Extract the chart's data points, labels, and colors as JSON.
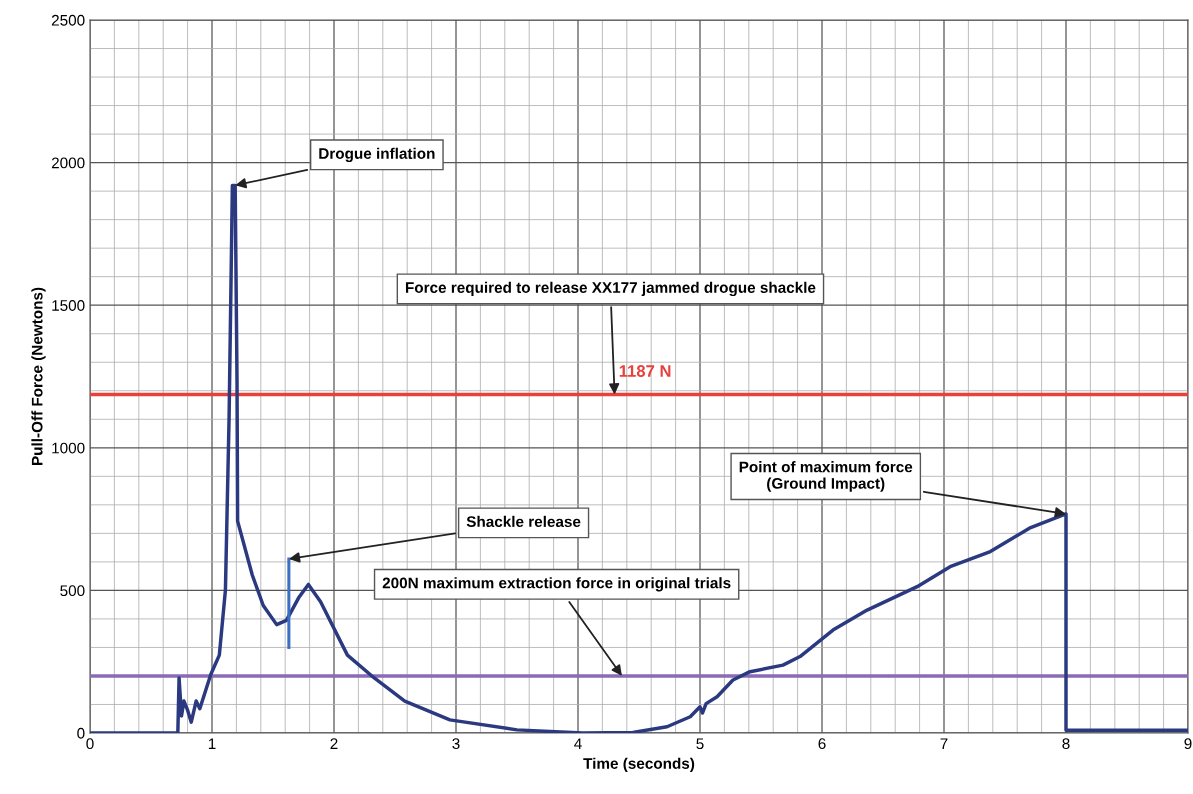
{
  "chart_data": {
    "type": "line",
    "xlabel": "Time (seconds)",
    "ylabel": "Pull-Off Force (Newtons)",
    "xlim": [
      0,
      9
    ],
    "ylim": [
      0,
      2500
    ],
    "xticks": [
      0,
      {
        "value": 0.2,
        "label": null
      },
      {
        "value": 0.4,
        "label": null
      },
      {
        "value": 0.6,
        "label": null
      },
      {
        "value": 0.8,
        "label": null
      },
      1,
      {
        "value": 1.2,
        "label": null
      },
      {
        "value": 1.4,
        "label": null
      },
      {
        "value": 1.6,
        "label": null
      },
      {
        "value": 1.8,
        "label": null
      },
      2,
      {
        "value": 2.2,
        "label": null
      },
      {
        "value": 2.4,
        "label": null
      },
      {
        "value": 2.6,
        "label": null
      },
      {
        "value": 2.8,
        "label": null
      },
      3,
      {
        "value": 3.2,
        "label": null
      },
      {
        "value": 3.4,
        "label": null
      },
      {
        "value": 3.6,
        "label": null
      },
      {
        "value": 3.8,
        "label": null
      },
      4,
      {
        "value": 4.2,
        "label": null
      },
      {
        "value": 4.4,
        "label": null
      },
      {
        "value": 4.6,
        "label": null
      },
      {
        "value": 4.8,
        "label": null
      },
      5,
      {
        "value": 5.2,
        "label": null
      },
      {
        "value": 5.4,
        "label": null
      },
      {
        "value": 5.6,
        "label": null
      },
      {
        "value": 5.8,
        "label": null
      },
      6,
      {
        "value": 6.2,
        "label": null
      },
      {
        "value": 6.4,
        "label": null
      },
      {
        "value": 6.6,
        "label": null
      },
      {
        "value": 6.8,
        "label": null
      },
      7,
      {
        "value": 7.2,
        "label": null
      },
      {
        "value": 7.4,
        "label": null
      },
      {
        "value": 7.6,
        "label": null
      },
      {
        "value": 7.8,
        "label": null
      },
      8,
      {
        "value": 8.2,
        "label": null
      },
      {
        "value": 8.4,
        "label": null
      },
      {
        "value": 8.6,
        "label": null
      },
      {
        "value": 8.8,
        "label": null
      },
      9
    ],
    "yticks": [
      0,
      {
        "value": 100,
        "label": null
      },
      {
        "value": 200,
        "label": null
      },
      {
        "value": 300,
        "label": null
      },
      {
        "value": 400,
        "label": null
      },
      500,
      {
        "value": 600,
        "label": null
      },
      {
        "value": 700,
        "label": null
      },
      {
        "value": 800,
        "label": null
      },
      {
        "value": 900,
        "label": null
      },
      1000,
      {
        "value": 1100,
        "label": null
      },
      {
        "value": 1200,
        "label": null
      },
      {
        "value": 1300,
        "label": null
      },
      {
        "value": 1400,
        "label": null
      },
      1500,
      {
        "value": 1600,
        "label": null
      },
      {
        "value": 1700,
        "label": null
      },
      {
        "value": 1800,
        "label": null
      },
      {
        "value": 1900,
        "label": null
      },
      2000,
      {
        "value": 2100,
        "label": null
      },
      {
        "value": 2200,
        "label": null
      },
      {
        "value": 2300,
        "label": null
      },
      {
        "value": 2400,
        "label": null
      },
      2500
    ],
    "grid": true,
    "series": [
      {
        "color": "#2b3a80",
        "x": [
          0,
          0.72,
          0.73,
          0.75,
          0.77,
          0.8,
          0.83,
          0.87,
          0.9,
          0.99,
          1.06,
          1.11,
          1.14,
          1.167,
          1.19,
          1.205,
          1.21,
          1.33,
          1.42,
          1.53,
          1.61,
          1.71,
          1.79,
          1.89,
          2.11,
          2.33,
          2.58,
          2.95,
          3.5,
          4.04,
          4.45,
          4.73,
          4.92,
          5.0,
          5.02,
          5.05,
          5.14,
          5.27,
          5.41,
          5.68,
          5.82,
          6.09,
          6.37,
          6.78,
          7.05,
          7.38,
          7.7,
          8.0,
          8.0,
          8.99
        ],
        "values": [
          0,
          0,
          193,
          60,
          112,
          80,
          38,
          112,
          85,
          205,
          273,
          501,
          1104,
          1920,
          1920,
          1239,
          743,
          554,
          447,
          380,
          395,
          474,
          521,
          460,
          273,
          193,
          112,
          46,
          11,
          0,
          2,
          22,
          57,
          92,
          70,
          103,
          127,
          186,
          215,
          238,
          268,
          361,
          431,
          513,
          583,
          636,
          718,
          768,
          10,
          10
        ]
      },
      {
        "color": "#3a6fc4",
        "x": [
          1.63,
          1.63
        ],
        "values": [
          300,
          610
        ]
      }
    ],
    "ref_lines": [
      {
        "axis": "y",
        "value": 1187,
        "label": "1187 N",
        "color": "#e8403c"
      },
      {
        "axis": "y",
        "value": 200,
        "color": "#8a6bb8"
      }
    ],
    "annotations": [
      {
        "text": "Drogue inflation",
        "x": 1.19,
        "y": 1920
      },
      {
        "text": "Force required to release XX177 jammed drogue shackle",
        "x": 4.3,
        "y": 1187
      },
      {
        "text": "Shackle release",
        "x": 1.63,
        "y": 610
      },
      {
        "text": "200N maximum extraction force in original trials",
        "x": 4.36,
        "y": 200
      },
      {
        "text": "Point of maximum force\n(Ground Impact)",
        "x": 8.0,
        "y": 768
      }
    ]
  }
}
